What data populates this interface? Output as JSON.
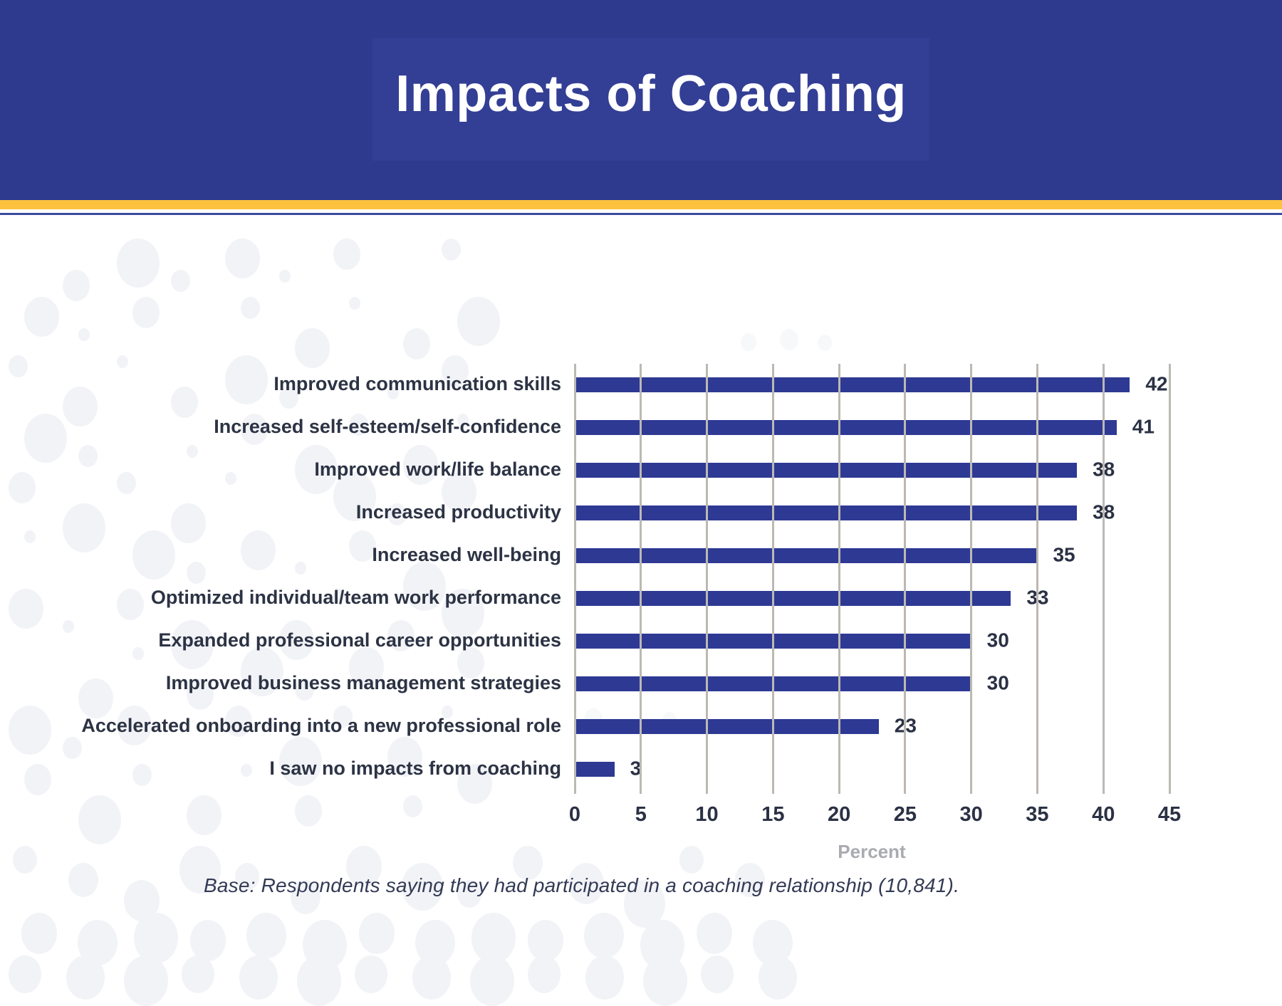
{
  "header": {
    "title": "Impacts of Coaching"
  },
  "chart_data": {
    "type": "bar",
    "orientation": "horizontal",
    "title": "Impacts of Coaching",
    "categories": [
      "Improved communication skills",
      "Increased self-esteem/self-confidence",
      "Improved work/life balance",
      "Increased productivity",
      "Increased well-being",
      "Optimized individual/team work performance",
      "Expanded professional career opportunities",
      "Improved business management strategies",
      "Accelerated onboarding into a new professional role",
      "I saw no impacts from coaching"
    ],
    "values": [
      42,
      41,
      38,
      38,
      35,
      33,
      30,
      30,
      23,
      3
    ],
    "xlabel": "Percent",
    "x_ticks": [
      0,
      5,
      10,
      15,
      20,
      25,
      30,
      35,
      40,
      45
    ],
    "xlim": [
      0,
      45
    ],
    "grid": "vertical-gridlines-on",
    "legend": "none",
    "value_labels": "shown-at-bar-end"
  },
  "footnote": "Base: Respondents saying they had participated in a coaching relationship (10,841).",
  "colors": {
    "header_band": "#2d3a8e",
    "title_box": "#333e95",
    "gold_stripe": "#fcc23e",
    "thin_line": "#3c4ba0",
    "bar": "#2e3994",
    "gridline": "#bcb9b3",
    "category_text": "#2c3344",
    "value_text": "#2b3144",
    "axis_title_text": "#a9abb0",
    "footnote_text": "#333a55",
    "background_dots": "#f2f3f7"
  }
}
